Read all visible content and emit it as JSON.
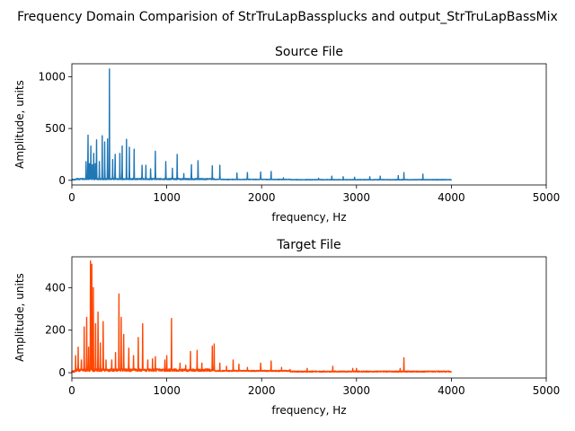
{
  "figure": {
    "suptitle": "Frequency Domain Comparision of StrTruLapBassplucks and output_StrTruLapBassMix"
  },
  "chart_data": [
    {
      "type": "line",
      "title": "Source File",
      "xlabel": "frequency, Hz",
      "ylabel": "Amplitude, units",
      "xlim": [
        0,
        5000
      ],
      "ylim": [
        -45,
        1125
      ],
      "xticks": [
        0,
        1000,
        2000,
        3000,
        4000,
        5000
      ],
      "yticks": [
        0,
        500,
        1000
      ],
      "grid": false,
      "color": "#1f77b4",
      "series": [
        {
          "peaks": [
            [
              150,
              180
            ],
            [
              170,
              435
            ],
            [
              185,
              160
            ],
            [
              200,
              330
            ],
            [
              215,
              150
            ],
            [
              230,
              260
            ],
            [
              245,
              160
            ],
            [
              260,
              390
            ],
            [
              290,
              180
            ],
            [
              320,
              430
            ],
            [
              345,
              370
            ],
            [
              375,
              400
            ],
            [
              395,
              1075
            ],
            [
              430,
              200
            ],
            [
              455,
              250
            ],
            [
              505,
              260
            ],
            [
              530,
              330
            ],
            [
              575,
              395
            ],
            [
              605,
              320
            ],
            [
              655,
              300
            ],
            [
              740,
              145
            ],
            [
              780,
              145
            ],
            [
              830,
              110
            ],
            [
              880,
              280
            ],
            [
              990,
              180
            ],
            [
              1060,
              115
            ],
            [
              1110,
              250
            ],
            [
              1180,
              65
            ],
            [
              1260,
              150
            ],
            [
              1330,
              190
            ],
            [
              1480,
              140
            ],
            [
              1560,
              145
            ],
            [
              1740,
              70
            ],
            [
              1850,
              75
            ],
            [
              1990,
              80
            ],
            [
              2100,
              85
            ],
            [
              2230,
              25
            ],
            [
              2600,
              20
            ],
            [
              2740,
              40
            ],
            [
              2860,
              35
            ],
            [
              2980,
              30
            ],
            [
              3140,
              35
            ],
            [
              3250,
              40
            ],
            [
              3440,
              45
            ],
            [
              3500,
              75
            ],
            [
              3700,
              60
            ]
          ]
        }
      ]
    },
    {
      "type": "line",
      "title": "Target File",
      "xlabel": "frequency, Hz",
      "ylabel": "Amplitude, units",
      "xlim": [
        0,
        5000
      ],
      "ylim": [
        -25,
        545
      ],
      "xticks": [
        0,
        1000,
        2000,
        3000,
        4000,
        5000
      ],
      "yticks": [
        0,
        200,
        400
      ],
      "grid": false,
      "color": "#ff4500",
      "series": [
        {
          "peaks": [
            [
              40,
              80
            ],
            [
              65,
              120
            ],
            [
              100,
              60
            ],
            [
              130,
              215
            ],
            [
              155,
              260
            ],
            [
              175,
              120
            ],
            [
              195,
              525
            ],
            [
              210,
              510
            ],
            [
              225,
              400
            ],
            [
              250,
              230
            ],
            [
              275,
              285
            ],
            [
              300,
              140
            ],
            [
              330,
              240
            ],
            [
              360,
              60
            ],
            [
              420,
              60
            ],
            [
              460,
              95
            ],
            [
              495,
              370
            ],
            [
              520,
              260
            ],
            [
              545,
              180
            ],
            [
              600,
              115
            ],
            [
              650,
              80
            ],
            [
              700,
              165
            ],
            [
              745,
              230
            ],
            [
              800,
              60
            ],
            [
              850,
              65
            ],
            [
              880,
              75
            ],
            [
              980,
              60
            ],
            [
              1000,
              80
            ],
            [
              1050,
              255
            ],
            [
              1140,
              45
            ],
            [
              1200,
              35
            ],
            [
              1250,
              100
            ],
            [
              1320,
              105
            ],
            [
              1370,
              45
            ],
            [
              1480,
              125
            ],
            [
              1500,
              135
            ],
            [
              1560,
              45
            ],
            [
              1630,
              30
            ],
            [
              1700,
              60
            ],
            [
              1760,
              40
            ],
            [
              1850,
              25
            ],
            [
              1990,
              45
            ],
            [
              2100,
              55
            ],
            [
              2210,
              25
            ],
            [
              2300,
              15
            ],
            [
              2480,
              20
            ],
            [
              2750,
              30
            ],
            [
              2960,
              20
            ],
            [
              3000,
              20
            ],
            [
              3460,
              20
            ],
            [
              3500,
              70
            ]
          ]
        }
      ]
    }
  ]
}
